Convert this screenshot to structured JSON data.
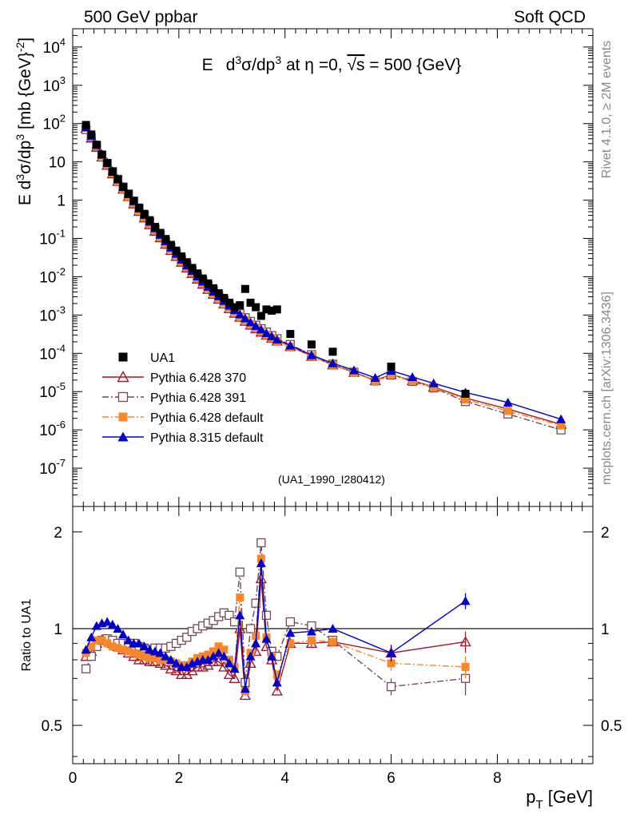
{
  "header": {
    "left": "500 GeV ppbar",
    "right": "Soft QCD"
  },
  "side": {
    "rivet": "Rivet 4.1.0, ≥ 2M events",
    "mcplots": "mcplots.cern.ch [arXiv:1306.3436]"
  },
  "chart_data": [
    {
      "type": "line",
      "title": "E d³σ/dp³ at η = 0, √s = 500 {GeV}",
      "title_parts": {
        "a": "E",
        "b": "d",
        "c": "3",
        "d": "σ/dp",
        "e": "3",
        "f": " at η =0, ",
        "g": "√s",
        "h": " = 500 {GeV}"
      },
      "ylabel": "E d³σ/dp³ [mb {GeV}⁻²]",
      "ylabel_parts": {
        "a": "E d",
        "b": "3",
        "c": "σ/dp",
        "d": "3",
        "e": " [mb {GeV}",
        "f": "-2",
        "g": "]"
      },
      "yscale": "log",
      "ylim": [
        1e-08,
        30000.0
      ],
      "xlim": [
        0,
        9.8
      ],
      "ytick_labels": [
        {
          "exp": -7,
          "base": "10",
          "sup": "-7"
        },
        {
          "exp": -6,
          "base": "10",
          "sup": "-6"
        },
        {
          "exp": -5,
          "base": "10",
          "sup": "-5"
        },
        {
          "exp": -4,
          "base": "10",
          "sup": "-4"
        },
        {
          "exp": -3,
          "base": "10",
          "sup": "-3"
        },
        {
          "exp": -2,
          "base": "10",
          "sup": "-2"
        },
        {
          "exp": -1,
          "base": "10",
          "sup": "-1"
        },
        {
          "exp": 0,
          "base": "1",
          "sup": ""
        },
        {
          "exp": 1,
          "base": "10",
          "sup": ""
        },
        {
          "exp": 2,
          "base": "10",
          "sup": "2"
        },
        {
          "exp": 3,
          "base": "10",
          "sup": "3"
        },
        {
          "exp": 4,
          "base": "10",
          "sup": "4"
        }
      ],
      "analysis_tag": "(UA1_1990_I280412)",
      "legend_position": "bottom-left",
      "series": [
        {
          "name": "UA1",
          "color": "#000000",
          "marker": "filled-square",
          "line": "none",
          "x": [
            0.25,
            0.35,
            0.45,
            0.55,
            0.65,
            0.75,
            0.85,
            0.95,
            1.05,
            1.15,
            1.25,
            1.35,
            1.45,
            1.55,
            1.65,
            1.75,
            1.85,
            1.95,
            2.05,
            2.15,
            2.25,
            2.35,
            2.45,
            2.55,
            2.65,
            2.75,
            2.85,
            2.95,
            3.05,
            3.15,
            3.25,
            3.35,
            3.45,
            3.55,
            3.65,
            3.75,
            3.85,
            4.1,
            4.5,
            4.9,
            6.0,
            7.4
          ],
          "y": [
            92,
            52,
            28,
            15.5,
            9.3,
            5.5,
            3.5,
            2.2,
            1.48,
            0.97,
            0.64,
            0.44,
            0.3,
            0.2,
            0.14,
            0.097,
            0.068,
            0.048,
            0.034,
            0.024,
            0.017,
            0.0122,
            0.009,
            0.0067,
            0.005,
            0.0037,
            0.0028,
            0.0021,
            0.0016,
            0.0018,
            0.0048,
            0.0021,
            0.0016,
            0.00095,
            0.0014,
            0.0013,
            0.0014,
            0.00032,
            0.00017,
            0.00011,
            4.5e-05,
            8.8e-06
          ]
        },
        {
          "name": "Pythia 6.428 370",
          "color": "#a5192b",
          "marker": "open-triangle",
          "line": "solid",
          "x": [
            0.25,
            0.35,
            0.45,
            0.55,
            0.65,
            0.75,
            0.85,
            0.95,
            1.05,
            1.15,
            1.25,
            1.35,
            1.45,
            1.55,
            1.65,
            1.75,
            1.85,
            1.95,
            2.05,
            2.15,
            2.25,
            2.35,
            2.45,
            2.55,
            2.65,
            2.75,
            2.85,
            2.95,
            3.05,
            3.15,
            3.25,
            3.35,
            3.45,
            3.55,
            3.65,
            3.75,
            3.85,
            4.1,
            4.5,
            4.9,
            5.3,
            5.7,
            6.0,
            6.4,
            6.8,
            7.4,
            8.2,
            9.2
          ],
          "y": [
            75,
            42,
            24,
            13.5,
            8.2,
            4.9,
            3.1,
            1.95,
            1.25,
            0.8,
            0.51,
            0.345,
            0.23,
            0.155,
            0.105,
            0.071,
            0.049,
            0.034,
            0.024,
            0.017,
            0.0122,
            0.0087,
            0.0064,
            0.0047,
            0.0035,
            0.0026,
            0.00195,
            0.00147,
            0.00112,
            0.00088,
            0.00069,
            0.00055,
            0.00044,
            0.00036,
            0.0003,
            0.00025,
            0.00021,
            0.00015,
            8.4e-05,
            5e-05,
            3.2e-05,
            1.95e-05,
            2.8e-05,
            1.95e-05,
            1.32e-05,
            6.8e-06,
            3.5e-06,
            1.4e-06
          ]
        },
        {
          "name": "Pythia 6.428 391",
          "color": "#734a58",
          "marker": "open-square",
          "line": "dash-dot",
          "x": [
            0.25,
            0.35,
            0.45,
            0.55,
            0.65,
            0.75,
            0.85,
            0.95,
            1.05,
            1.15,
            1.25,
            1.35,
            1.45,
            1.55,
            1.65,
            1.75,
            1.85,
            1.95,
            2.05,
            2.15,
            2.25,
            2.35,
            2.45,
            2.55,
            2.65,
            2.75,
            2.85,
            2.95,
            3.05,
            3.15,
            3.25,
            3.35,
            3.45,
            3.55,
            3.65,
            3.75,
            3.85,
            4.1,
            4.5,
            4.9,
            5.3,
            5.7,
            6.0,
            6.4,
            6.8,
            7.4,
            8.2,
            9.2
          ],
          "y": [
            70,
            44,
            26,
            15,
            9.1,
            5.6,
            3.5,
            2.2,
            1.42,
            0.92,
            0.6,
            0.4,
            0.27,
            0.18,
            0.123,
            0.084,
            0.058,
            0.04,
            0.028,
            0.02,
            0.0145,
            0.0105,
            0.0078,
            0.0058,
            0.0043,
            0.0032,
            0.0024,
            0.0018,
            0.00138,
            0.00108,
            0.00085,
            0.00068,
            0.00054,
            0.00044,
            0.00036,
            0.00029,
            0.00024,
            0.00017,
            9.2e-05,
            5.2e-05,
            3.2e-05,
            1.9e-05,
            2.7e-05,
            1.85e-05,
            1.25e-05,
            5.5e-06,
            2.6e-06,
            1e-06
          ]
        },
        {
          "name": "Pythia 6.428 default",
          "color": "#f98729",
          "marker": "filled-square",
          "line": "dash-dot",
          "x": [
            0.25,
            0.35,
            0.45,
            0.55,
            0.65,
            0.75,
            0.85,
            0.95,
            1.05,
            1.15,
            1.25,
            1.35,
            1.45,
            1.55,
            1.65,
            1.75,
            1.85,
            1.95,
            2.05,
            2.15,
            2.25,
            2.35,
            2.45,
            2.55,
            2.65,
            2.75,
            2.85,
            2.95,
            3.05,
            3.15,
            3.25,
            3.35,
            3.45,
            3.55,
            3.65,
            3.75,
            3.85,
            4.1,
            4.5,
            4.9,
            5.3,
            5.7,
            6.0,
            6.4,
            6.8,
            7.4,
            8.2,
            9.2
          ],
          "y": [
            78,
            46,
            26,
            14.5,
            8.6,
            5.0,
            3.1,
            1.95,
            1.25,
            0.82,
            0.53,
            0.355,
            0.24,
            0.162,
            0.11,
            0.075,
            0.052,
            0.036,
            0.025,
            0.0177,
            0.0127,
            0.0091,
            0.0067,
            0.005,
            0.0037,
            0.00275,
            0.0021,
            0.00157,
            0.0012,
            0.00093,
            0.00073,
            0.00058,
            0.00046,
            0.00037,
            0.0003,
            0.00025,
            0.00021,
            0.00015,
            8.5e-05,
            5e-05,
            3.1e-05,
            1.9e-05,
            2.8e-05,
            1.9e-05,
            1.28e-05,
            6.2e-06,
            3.1e-06,
            1.3e-06
          ]
        },
        {
          "name": "Pythia 8.315 default",
          "color": "#0000cc",
          "marker": "filled-triangle",
          "line": "solid",
          "x": [
            0.25,
            0.35,
            0.45,
            0.55,
            0.65,
            0.75,
            0.85,
            0.95,
            1.05,
            1.15,
            1.25,
            1.35,
            1.45,
            1.55,
            1.65,
            1.75,
            1.85,
            1.95,
            2.05,
            2.15,
            2.25,
            2.35,
            2.45,
            2.55,
            2.65,
            2.75,
            2.85,
            2.95,
            3.05,
            3.15,
            3.25,
            3.35,
            3.45,
            3.55,
            3.65,
            3.75,
            3.85,
            4.1,
            4.5,
            4.9,
            5.3,
            5.7,
            6.0,
            6.4,
            6.8,
            7.4,
            8.2,
            9.2
          ],
          "y": [
            80,
            48,
            28,
            16,
            9.8,
            5.8,
            3.6,
            2.25,
            1.45,
            0.94,
            0.61,
            0.41,
            0.275,
            0.185,
            0.125,
            0.085,
            0.058,
            0.04,
            0.028,
            0.0198,
            0.0142,
            0.0102,
            0.0075,
            0.0055,
            0.0041,
            0.0031,
            0.00235,
            0.00177,
            0.00135,
            0.00104,
            0.00082,
            0.00065,
            0.00052,
            0.00042,
            0.00034,
            0.00028,
            0.00023,
            0.00016,
            9e-05,
            5.5e-05,
            3.6e-05,
            2.3e-05,
            3.5e-05,
            2.4e-05,
            1.65e-05,
            9.5e-06,
            5.2e-06,
            1.9e-06
          ]
        }
      ]
    },
    {
      "type": "line",
      "ylabel": "Ratio to UA1",
      "xlabel": "p_T [GeV]",
      "xlabel_parts": {
        "a": "p",
        "b": "T",
        "c": " [GeV]"
      },
      "xlim": [
        0,
        9.8
      ],
      "xtick_labels": [
        "0",
        "2",
        "4",
        "6",
        "8"
      ],
      "xticks": [
        0,
        2,
        4,
        6,
        8
      ],
      "yscale": "log",
      "ylim": [
        0.38,
        2.4
      ],
      "ytick_labels": [
        "0.5",
        "1",
        "2"
      ],
      "yticks": [
        0.5,
        1,
        2
      ],
      "reference_line": 1,
      "x": [
        0.25,
        0.35,
        0.45,
        0.55,
        0.65,
        0.75,
        0.85,
        0.95,
        1.05,
        1.15,
        1.25,
        1.35,
        1.45,
        1.55,
        1.65,
        1.75,
        1.85,
        1.95,
        2.05,
        2.15,
        2.25,
        2.35,
        2.45,
        2.55,
        2.65,
        2.75,
        2.85,
        2.95,
        3.05,
        3.15,
        3.25,
        3.35,
        3.45,
        3.55,
        3.65,
        3.75,
        3.85,
        4.1,
        4.5,
        4.9,
        6.0,
        7.4
      ],
      "series": [
        {
          "name": "Pythia 6.428 370",
          "color": "#a5192b",
          "marker": "open-triangle",
          "line": "solid",
          "values": [
            0.82,
            0.85,
            0.9,
            0.92,
            0.92,
            0.9,
            0.88,
            0.86,
            0.84,
            0.82,
            0.8,
            0.8,
            0.79,
            0.79,
            0.78,
            0.77,
            0.75,
            0.74,
            0.72,
            0.72,
            0.74,
            0.76,
            0.76,
            0.77,
            0.79,
            0.79,
            0.76,
            0.72,
            0.7,
            1.0,
            0.62,
            0.78,
            0.85,
            1.43,
            0.88,
            0.8,
            0.64,
            0.9,
            0.9,
            0.91,
            0.84,
            0.91
          ],
          "errors": [
            0,
            0,
            0,
            0,
            0,
            0,
            0,
            0,
            0,
            0,
            0,
            0,
            0,
            0,
            0,
            0,
            0,
            0,
            0,
            0,
            0,
            0,
            0,
            0,
            0,
            0,
            0,
            0,
            0,
            0,
            0,
            0,
            0,
            0,
            0,
            0,
            0,
            0.02,
            0.02,
            0.03,
            0.05,
            0.07
          ]
        },
        {
          "name": "Pythia 6.428 391",
          "color": "#734a58",
          "marker": "open-square",
          "line": "dash-dot",
          "values": [
            0.75,
            0.82,
            0.88,
            0.92,
            0.93,
            0.92,
            0.9,
            0.9,
            0.9,
            0.9,
            0.88,
            0.87,
            0.86,
            0.87,
            0.87,
            0.87,
            0.88,
            0.9,
            0.92,
            0.94,
            0.98,
            1.0,
            1.02,
            1.04,
            1.06,
            1.09,
            1.12,
            1.1,
            1.05,
            1.5,
            0.68,
            1.0,
            1.2,
            1.85,
            1.1,
            0.85,
            0.82,
            1.05,
            1.02,
            0.92,
            0.66,
            0.7
          ],
          "errors": [
            0,
            0,
            0,
            0,
            0,
            0,
            0,
            0,
            0,
            0,
            0,
            0,
            0,
            0,
            0,
            0,
            0,
            0,
            0,
            0,
            0,
            0,
            0,
            0,
            0,
            0,
            0,
            0,
            0,
            0,
            0,
            0,
            0,
            0,
            0,
            0,
            0,
            0.02,
            0.02,
            0.03,
            0.04,
            0.08
          ]
        },
        {
          "name": "Pythia 6.428 default",
          "color": "#f98729",
          "marker": "filled-square",
          "line": "dash-dot",
          "values": [
            0.84,
            0.88,
            0.92,
            0.92,
            0.9,
            0.88,
            0.87,
            0.86,
            0.85,
            0.84,
            0.83,
            0.82,
            0.81,
            0.81,
            0.8,
            0.8,
            0.79,
            0.78,
            0.77,
            0.77,
            0.79,
            0.81,
            0.82,
            0.83,
            0.85,
            0.88,
            0.86,
            0.8,
            0.76,
            1.25,
            0.64,
            0.84,
            0.95,
            1.65,
            0.94,
            0.82,
            0.72,
            0.9,
            0.92,
            0.91,
            0.78,
            0.76
          ],
          "errors": [
            0,
            0,
            0,
            0,
            0,
            0,
            0,
            0,
            0,
            0,
            0,
            0,
            0,
            0,
            0,
            0,
            0,
            0,
            0,
            0,
            0,
            0,
            0,
            0,
            0,
            0,
            0,
            0,
            0,
            0,
            0,
            0,
            0,
            0,
            0,
            0,
            0,
            0.02,
            0.02,
            0.03,
            0.04,
            0.06
          ]
        },
        {
          "name": "Pythia 8.315 default",
          "color": "#0000cc",
          "marker": "filled-triangle",
          "line": "solid",
          "values": [
            0.86,
            0.94,
            1.02,
            1.04,
            1.05,
            1.03,
            1.0,
            0.96,
            0.92,
            0.9,
            0.9,
            0.88,
            0.86,
            0.85,
            0.84,
            0.82,
            0.8,
            0.78,
            0.76,
            0.76,
            0.78,
            0.79,
            0.8,
            0.8,
            0.82,
            0.84,
            0.82,
            0.78,
            0.75,
            1.1,
            0.65,
            0.82,
            0.9,
            1.6,
            0.93,
            0.82,
            0.68,
            0.97,
            0.98,
            1.0,
            0.84,
            1.22
          ],
          "errors": [
            0,
            0,
            0,
            0,
            0,
            0,
            0,
            0,
            0,
            0,
            0,
            0,
            0,
            0,
            0,
            0,
            0,
            0,
            0,
            0,
            0,
            0,
            0,
            0,
            0,
            0,
            0,
            0,
            0,
            0,
            0,
            0,
            0,
            0,
            0,
            0,
            0,
            0.02,
            0.02,
            0.03,
            0.05,
            0.07
          ]
        }
      ]
    }
  ]
}
